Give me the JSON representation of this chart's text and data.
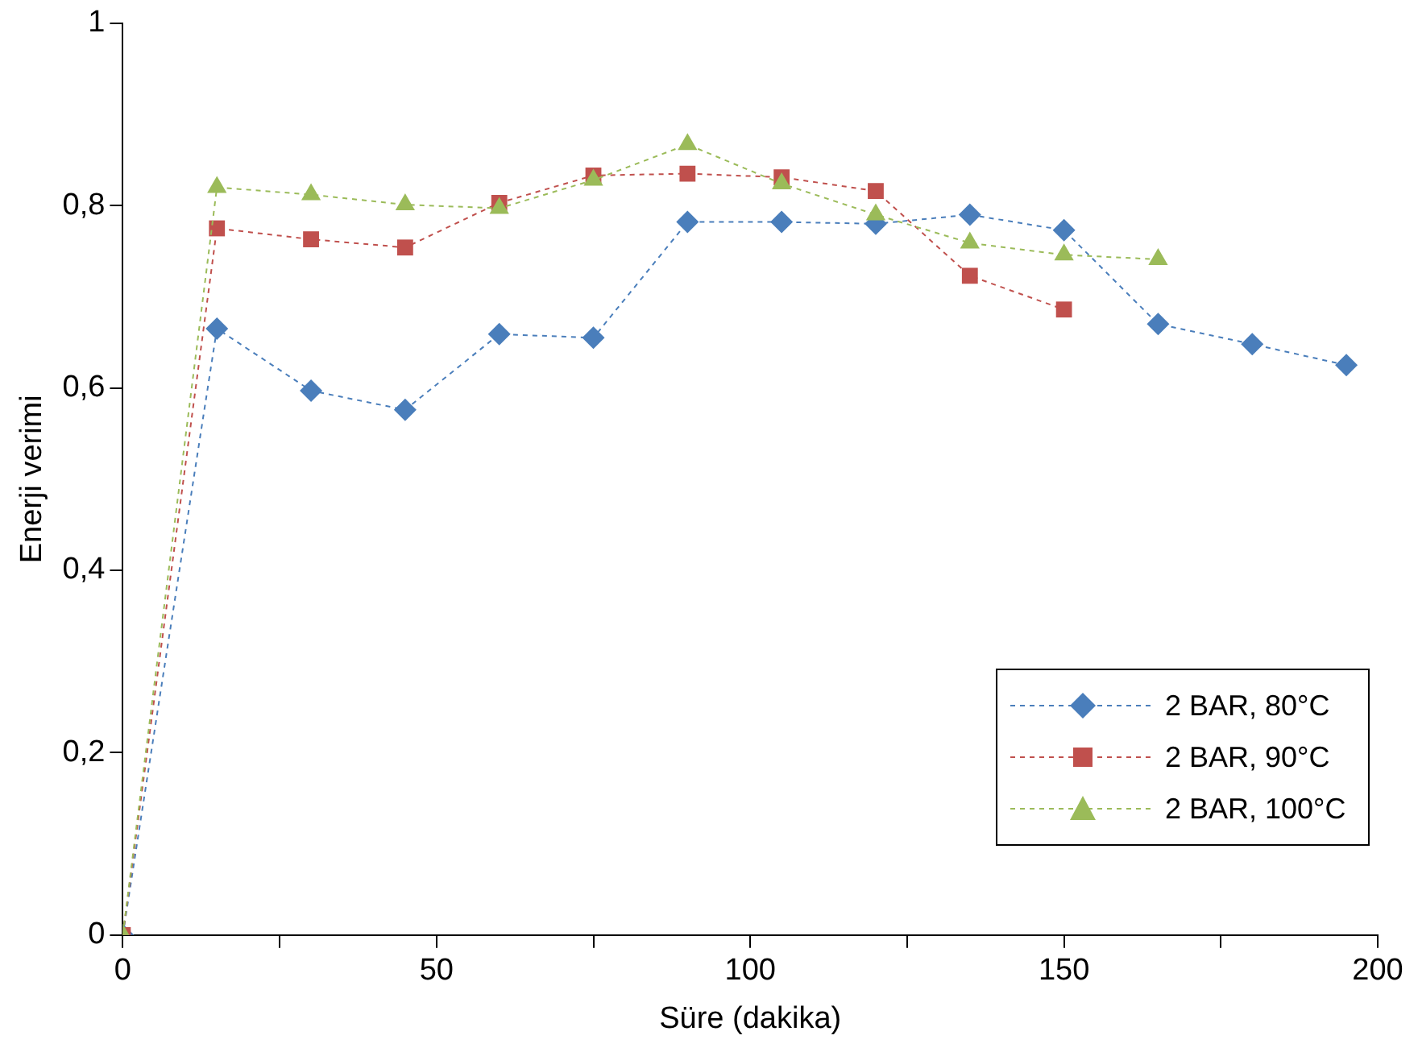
{
  "chart_data": {
    "type": "line",
    "xlabel": "Süre (dakika)",
    "ylabel": "Enerji verimi",
    "xlim": [
      0,
      200
    ],
    "xticks": [
      0,
      {
        "value": 25,
        "label": null
      },
      50,
      {
        "value": 75,
        "label": null
      },
      100,
      {
        "value": 125,
        "label": null
      },
      150,
      {
        "value": 175,
        "label": null
      },
      200
    ],
    "ylim": [
      0,
      1
    ],
    "yticks": [
      0,
      {
        "value": 0.2,
        "label": "0,2"
      },
      {
        "value": 0.4,
        "label": "0,4"
      },
      {
        "value": 0.6,
        "label": "0,6"
      },
      {
        "value": 0.8,
        "label": "0,8"
      },
      1
    ],
    "grid": false,
    "legend": "bottom right",
    "line_style": "dashed",
    "series": [
      {
        "name": "2 BAR, 80°C",
        "color": "#4a7ebb",
        "marker": "diamond",
        "x": [
          0,
          15,
          30,
          45,
          60,
          75,
          90,
          105,
          120,
          135,
          150,
          165,
          180,
          195
        ],
        "values": [
          0,
          0.665,
          0.597,
          0.576,
          0.659,
          0.655,
          0.782,
          0.782,
          0.78,
          0.79,
          0.773,
          0.67,
          0.648,
          0.625
        ]
      },
      {
        "name": "2 BAR, 90°C",
        "color": "#c0504d",
        "marker": "square",
        "x": [
          0,
          15,
          30,
          45,
          60,
          75,
          90,
          105,
          120,
          135,
          150
        ],
        "values": [
          0,
          0.775,
          0.763,
          0.754,
          0.803,
          0.833,
          0.835,
          0.831,
          0.816,
          0.723,
          0.686
        ]
      },
      {
        "name": "2 BAR, 100°C",
        "color": "#9bbb59",
        "marker": "triangle",
        "x": [
          0,
          15,
          30,
          45,
          60,
          75,
          90,
          105,
          120,
          135,
          150,
          165
        ],
        "values": [
          0,
          0.82,
          0.812,
          0.801,
          0.797,
          0.828,
          0.867,
          0.824,
          0.79,
          0.759,
          0.746,
          0.741
        ]
      }
    ]
  }
}
